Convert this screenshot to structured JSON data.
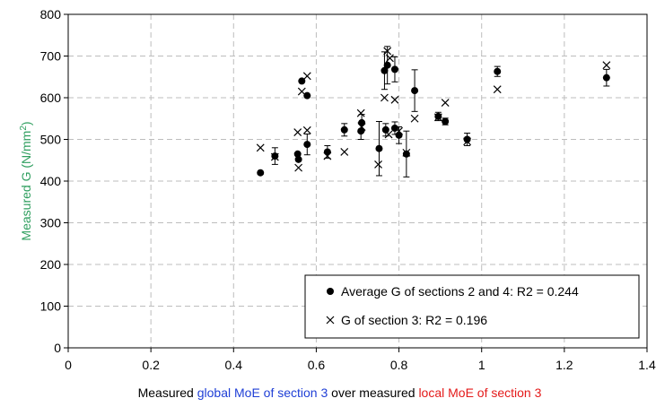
{
  "chart_data": {
    "type": "scatter",
    "title": "",
    "xlim": [
      0,
      1.4
    ],
    "ylim": [
      0,
      800
    ],
    "xticks": [
      "0",
      "0.2",
      "0.4",
      "0.6",
      "0.8",
      "1",
      "1.2",
      "1.4"
    ],
    "yticks": [
      "0",
      "100",
      "200",
      "300",
      "400",
      "500",
      "600",
      "700",
      "800"
    ],
    "grid": true,
    "legend_position": "bottom-right",
    "ylabel": {
      "text": "Measured G (N/mm",
      "sup": "2",
      "close": ")",
      "color": "#2e9e5e"
    },
    "xlabel": {
      "parts": [
        {
          "text": "Measured ",
          "color": "#000000"
        },
        {
          "text": "global MoE of section 3",
          "color": "#1f3fd6"
        },
        {
          "text": " over measured ",
          "color": "#000000"
        },
        {
          "text": "local MoE of section 3",
          "color": "#e41a1a"
        }
      ]
    },
    "series": [
      {
        "name": "Average G of sections 2 and 4: R2 = 0.244",
        "marker": "filled-circle",
        "color": "#000000",
        "points": [
          {
            "x": 0.465,
            "y": 420,
            "err": 0
          },
          {
            "x": 0.5,
            "y": 460,
            "err": 20
          },
          {
            "x": 0.555,
            "y": 465,
            "err": 0
          },
          {
            "x": 0.557,
            "y": 452,
            "err": 0
          },
          {
            "x": 0.565,
            "y": 640,
            "err": 0
          },
          {
            "x": 0.578,
            "y": 605,
            "err": 0
          },
          {
            "x": 0.578,
            "y": 488,
            "err": 25
          },
          {
            "x": 0.627,
            "y": 470,
            "err": 15
          },
          {
            "x": 0.668,
            "y": 523,
            "err": 15
          },
          {
            "x": 0.708,
            "y": 520,
            "err": 20
          },
          {
            "x": 0.71,
            "y": 540,
            "err": 20
          },
          {
            "x": 0.752,
            "y": 478,
            "err": 65
          },
          {
            "x": 0.765,
            "y": 665,
            "err": 45
          },
          {
            "x": 0.768,
            "y": 523,
            "err": 15
          },
          {
            "x": 0.772,
            "y": 678,
            "err": 45
          },
          {
            "x": 0.79,
            "y": 668,
            "err": 30
          },
          {
            "x": 0.79,
            "y": 527,
            "err": 15
          },
          {
            "x": 0.8,
            "y": 510,
            "err": 20
          },
          {
            "x": 0.818,
            "y": 465,
            "err": 55
          },
          {
            "x": 0.838,
            "y": 617,
            "err": 50
          },
          {
            "x": 0.895,
            "y": 555,
            "err": 10
          },
          {
            "x": 0.912,
            "y": 543,
            "err": 8
          },
          {
            "x": 0.965,
            "y": 500,
            "err": 15
          },
          {
            "x": 1.038,
            "y": 663,
            "err": 12
          },
          {
            "x": 1.302,
            "y": 648,
            "err": 20
          }
        ]
      },
      {
        "name": "G of section 3: R2 = 0.196",
        "marker": "x",
        "color": "#000000",
        "points": [
          {
            "x": 0.465,
            "y": 480
          },
          {
            "x": 0.5,
            "y": 458
          },
          {
            "x": 0.555,
            "y": 517
          },
          {
            "x": 0.557,
            "y": 432
          },
          {
            "x": 0.565,
            "y": 615
          },
          {
            "x": 0.578,
            "y": 652
          },
          {
            "x": 0.578,
            "y": 522
          },
          {
            "x": 0.627,
            "y": 460
          },
          {
            "x": 0.668,
            "y": 470
          },
          {
            "x": 0.708,
            "y": 563
          },
          {
            "x": 0.71,
            "y": 530
          },
          {
            "x": 0.75,
            "y": 440
          },
          {
            "x": 0.765,
            "y": 600
          },
          {
            "x": 0.772,
            "y": 712
          },
          {
            "x": 0.775,
            "y": 512
          },
          {
            "x": 0.778,
            "y": 695
          },
          {
            "x": 0.79,
            "y": 595
          },
          {
            "x": 0.8,
            "y": 520
          },
          {
            "x": 0.818,
            "y": 468
          },
          {
            "x": 0.838,
            "y": 550
          },
          {
            "x": 0.895,
            "y": 553
          },
          {
            "x": 0.912,
            "y": 588
          },
          {
            "x": 0.965,
            "y": 495
          },
          {
            "x": 1.038,
            "y": 620
          },
          {
            "x": 1.302,
            "y": 678
          }
        ]
      }
    ]
  }
}
